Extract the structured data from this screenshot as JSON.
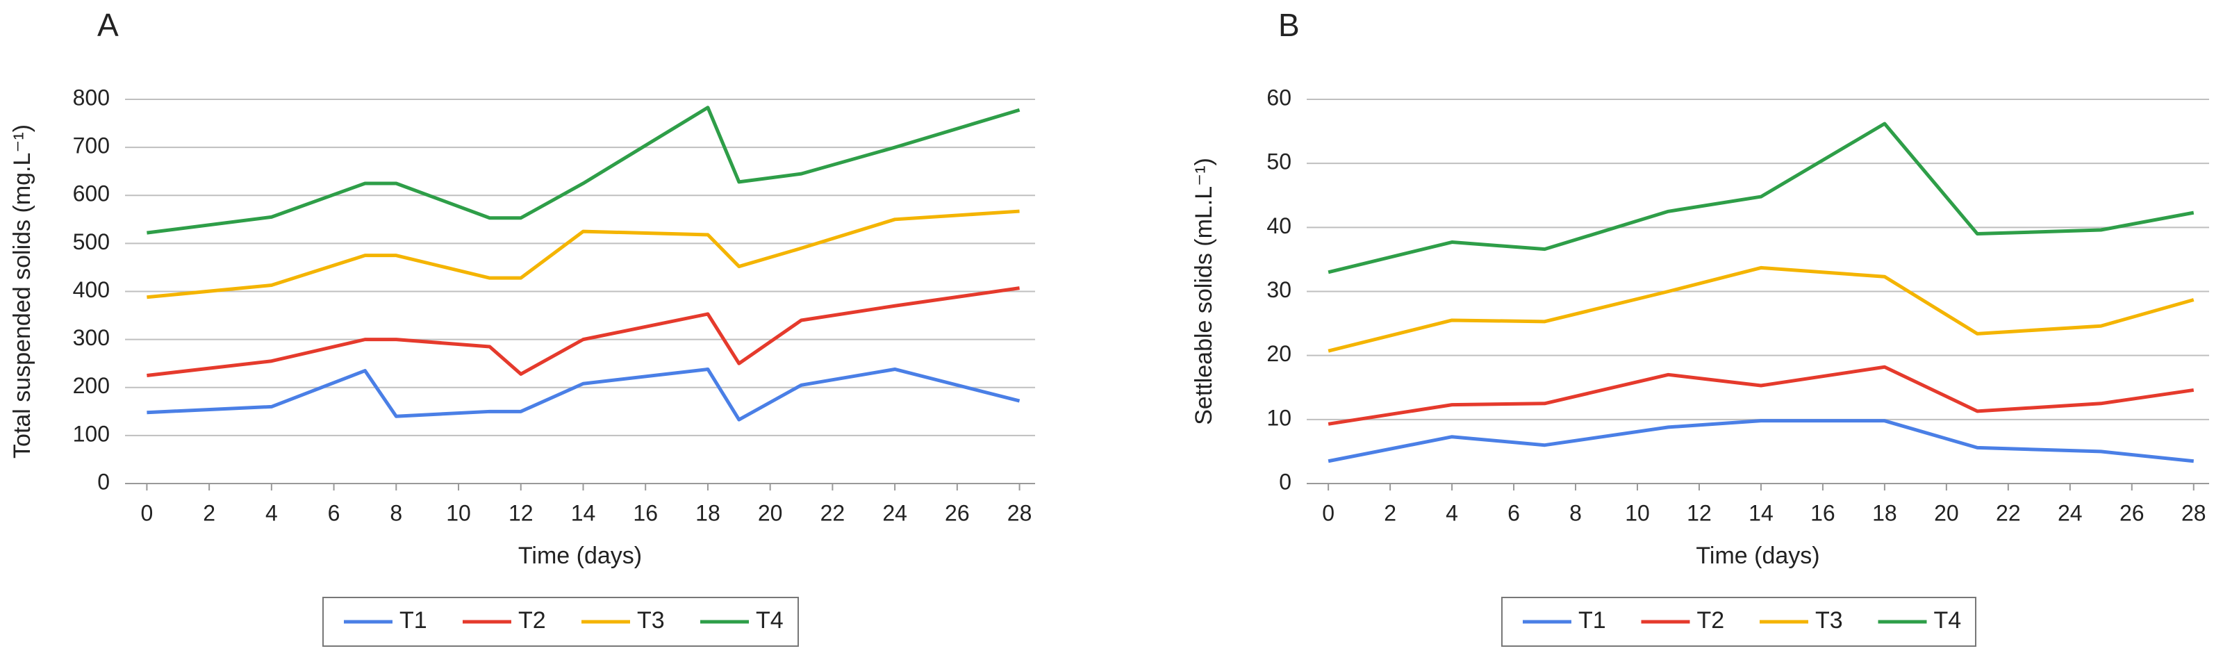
{
  "chart_data": [
    {
      "type": "line",
      "title": "A",
      "x_label": "Time (days)",
      "y_label": "Total suspended solids (mg.L⁻¹)",
      "x": [
        0,
        4,
        7,
        8,
        11,
        12,
        14,
        18,
        19,
        21,
        24,
        28
      ],
      "xlim": [
        -0.7,
        28.5
      ],
      "xticks": [
        0,
        2,
        4,
        6,
        8,
        10,
        12,
        14,
        16,
        18,
        20,
        22,
        24,
        26,
        28
      ],
      "ylim": [
        0,
        800
      ],
      "yticks": [
        0,
        100,
        200,
        300,
        400,
        500,
        600,
        700,
        800
      ],
      "grid": true,
      "legend": "bottom",
      "series": [
        {
          "name": "T1",
          "color": "#4a7fe6",
          "values": [
            148,
            160,
            235,
            140,
            150,
            150,
            208,
            238,
            133,
            205,
            238,
            172
          ]
        },
        {
          "name": "T2",
          "color": "#e53a2c",
          "values": [
            225,
            255,
            300,
            300,
            285,
            228,
            300,
            353,
            250,
            340,
            370,
            407
          ]
        },
        {
          "name": "T3",
          "color": "#f4b400",
          "values": [
            388,
            413,
            475,
            475,
            428,
            428,
            525,
            518,
            452,
            490,
            550,
            567
          ]
        },
        {
          "name": "T4",
          "color": "#2e9e48",
          "values": [
            522,
            555,
            625,
            625,
            553,
            553,
            625,
            783,
            628,
            645,
            700,
            778
          ]
        }
      ]
    },
    {
      "type": "line",
      "title": "B",
      "x_label": "Time (days)",
      "y_label": "Settleable solids (mL.L⁻¹)",
      "x": [
        0,
        4,
        7,
        11,
        14,
        18,
        21,
        25,
        28
      ],
      "xlim": [
        -0.7,
        28.5
      ],
      "xticks": [
        0,
        2,
        4,
        6,
        8,
        10,
        12,
        14,
        16,
        18,
        20,
        22,
        24,
        26,
        28
      ],
      "ylim": [
        0,
        60
      ],
      "yticks": [
        0,
        10,
        20,
        30,
        40,
        50,
        60
      ],
      "grid": true,
      "legend": "bottom",
      "series": [
        {
          "name": "T1",
          "color": "#4a7fe6",
          "values": [
            3.5,
            7.3,
            6,
            8.8,
            9.8,
            9.8,
            5.6,
            5,
            3.5
          ]
        },
        {
          "name": "T2",
          "color": "#e53a2c",
          "values": [
            9.3,
            12.3,
            12.5,
            17,
            15.3,
            18.2,
            11.3,
            12.5,
            14.6
          ]
        },
        {
          "name": "T3",
          "color": "#f4b400",
          "values": [
            20.7,
            25.5,
            25.3,
            30,
            33.7,
            32.3,
            23.4,
            24.6,
            28.7
          ]
        },
        {
          "name": "T4",
          "color": "#2e9e48",
          "values": [
            33,
            37.7,
            36.6,
            42.5,
            44.8,
            56.2,
            39,
            39.6,
            42.3
          ]
        }
      ]
    }
  ]
}
